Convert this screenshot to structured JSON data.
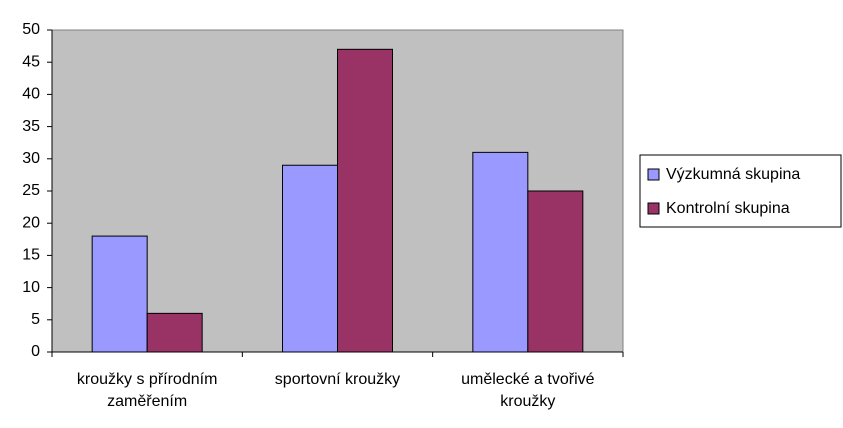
{
  "chart_data": {
    "type": "bar",
    "categories": [
      "kroužky s přírodním zaměřením",
      "sportovní kroužky",
      "umělecké a tvořivé kroužky"
    ],
    "series": [
      {
        "name": "Výzkumná skupina",
        "color": "#9999ff",
        "values": [
          18,
          29,
          31
        ]
      },
      {
        "name": "Kontrolní skupina",
        "color": "#993366",
        "values": [
          6,
          47,
          25
        ]
      }
    ],
    "ylim": [
      0,
      50
    ],
    "yticks": [
      0,
      5,
      10,
      15,
      20,
      25,
      30,
      35,
      40,
      45,
      50
    ],
    "grid": false,
    "legend": "right"
  }
}
